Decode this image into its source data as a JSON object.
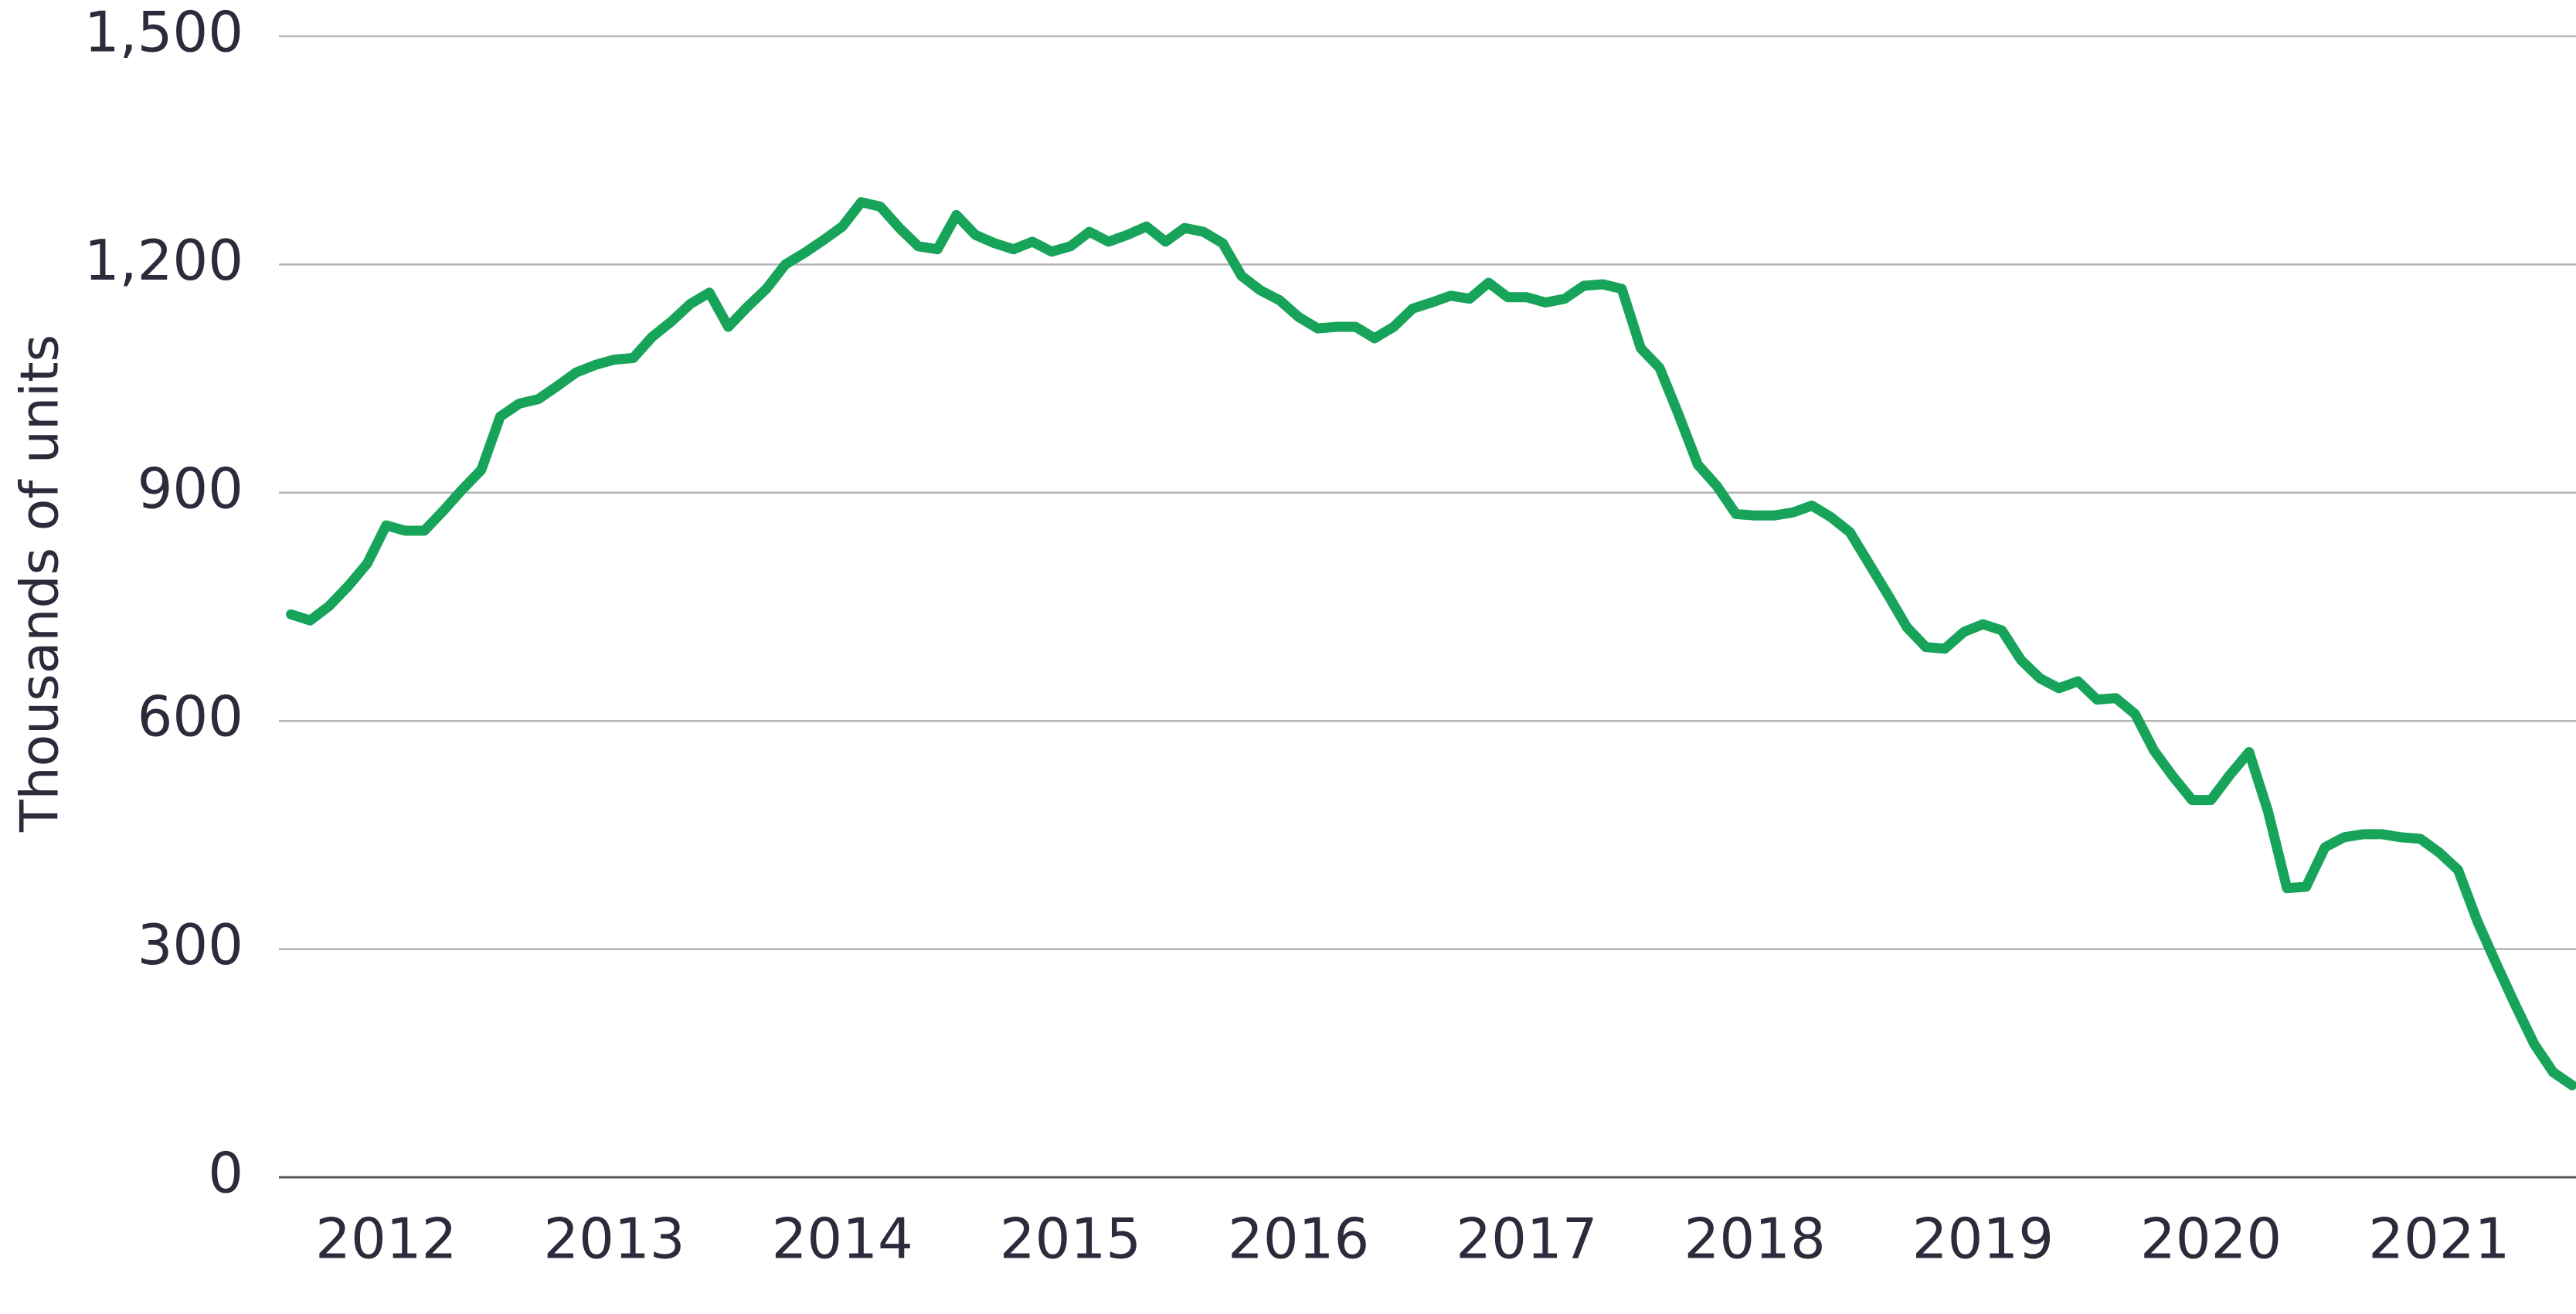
{
  "chart_data": {
    "type": "line",
    "y_label": "Thousands of units",
    "x": [
      2011.583,
      2011.667,
      2011.75,
      2011.833,
      2011.917,
      2012,
      2012.083,
      2012.167,
      2012.25,
      2012.333,
      2012.417,
      2012.5,
      2012.583,
      2012.667,
      2012.75,
      2012.833,
      2012.917,
      2013,
      2013.083,
      2013.167,
      2013.25,
      2013.333,
      2013.417,
      2013.5,
      2013.583,
      2013.667,
      2013.75,
      2013.833,
      2013.917,
      2014,
      2014.083,
      2014.167,
      2014.25,
      2014.333,
      2014.417,
      2014.5,
      2014.583,
      2014.667,
      2014.75,
      2014.833,
      2014.917,
      2015,
      2015.083,
      2015.167,
      2015.25,
      2015.333,
      2015.417,
      2015.5,
      2015.583,
      2015.667,
      2015.75,
      2015.833,
      2015.917,
      2016,
      2016.083,
      2016.167,
      2016.25,
      2016.333,
      2016.417,
      2016.5,
      2016.583,
      2016.667,
      2016.75,
      2016.833,
      2016.917,
      2017,
      2017.083,
      2017.167,
      2017.25,
      2017.333,
      2017.417,
      2017.5,
      2017.583,
      2017.667,
      2017.75,
      2017.833,
      2017.917,
      2018,
      2018.083,
      2018.167,
      2018.25,
      2018.333,
      2018.417,
      2018.5,
      2018.583,
      2018.667,
      2018.75,
      2018.833,
      2018.917,
      2019,
      2019.083,
      2019.167,
      2019.25,
      2019.333,
      2019.417,
      2019.5,
      2019.583,
      2019.667,
      2019.75,
      2019.833,
      2019.917,
      2020,
      2020.083,
      2020.167,
      2020.25,
      2020.333,
      2020.417,
      2020.5,
      2020.583,
      2020.667,
      2020.75,
      2020.833,
      2020.917,
      2021,
      2021.083,
      2021.167,
      2021.25,
      2021.333,
      2021.417,
      2021.5,
      2021.583
    ],
    "series": [
      {
        "color": "#17a45a",
        "values": [
          740,
          732,
          751,
          777,
          807,
          857,
          850,
          850,
          876,
          904,
          930,
          1000,
          1017,
          1023,
          1040,
          1058,
          1068,
          1075,
          1077,
          1105,
          1125,
          1148,
          1163,
          1118,
          1144,
          1168,
          1200,
          1215,
          1232,
          1250,
          1282,
          1276,
          1248,
          1224,
          1220,
          1265,
          1239,
          1228,
          1220,
          1230,
          1217,
          1224,
          1243,
          1230,
          1239,
          1250,
          1230,
          1248,
          1243,
          1228,
          1185,
          1166,
          1153,
          1131,
          1116,
          1118,
          1118,
          1103,
          1118,
          1142,
          1150,
          1159,
          1155,
          1176,
          1157,
          1157,
          1150,
          1155,
          1172,
          1174,
          1168,
          1090,
          1064,
          1002,
          937,
          909,
          872,
          870,
          870,
          874,
          883,
          868,
          848,
          807,
          766,
          723,
          697,
          695,
          717,
          727,
          719,
          680,
          656,
          643,
          652,
          628,
          630,
          609,
          561,
          527,
          496,
          496,
          529,
          559,
          481,
          380,
          382,
          434,
          447,
          451,
          451,
          447,
          445,
          427,
          404,
          337,
          281,
          227,
          175,
          138,
          121
        ]
      }
    ],
    "xlim": [
      2011.53,
      2021.6
    ],
    "xticks": [
      2012,
      2013,
      2014,
      2015,
      2016,
      2017,
      2018,
      2019,
      2020,
      2021
    ],
    "ylim": [
      0,
      1500
    ],
    "yticks": [
      0,
      300,
      600,
      900,
      {
        "value": 1200,
        "label": "1,200"
      },
      {
        "value": 1500,
        "label": "1,500"
      }
    ],
    "grid": true
  }
}
